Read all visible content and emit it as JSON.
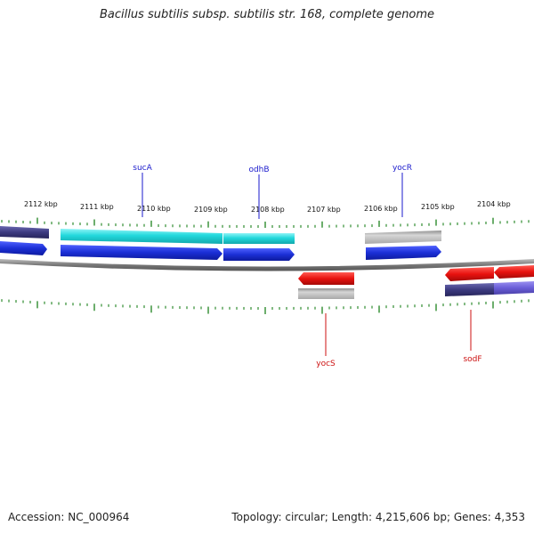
{
  "title": "Bacillus subtilis subsp. subtilis str. 168, complete genome",
  "footer": {
    "accession": "Accession: NC_000964",
    "summary": "Topology: circular; Length: 4,215,606 bp; Genes: 4,353"
  },
  "ruler": {
    "unit": "kbp",
    "labels": [
      "2112 kbp",
      "2111 kbp",
      "2110 kbp",
      "2109 kbp",
      "2108 kbp",
      "2107 kbp",
      "2106 kbp",
      "2105 kbp",
      "2104 kbp"
    ]
  },
  "genes_forward": [
    {
      "name": "sucA",
      "color": "#1b2fd6"
    },
    {
      "name": "odhB",
      "color": "#1b2fd6"
    },
    {
      "name": "yocR",
      "color": "#1b2fd6"
    }
  ],
  "genes_reverse": [
    {
      "name": "yocS",
      "color": "#e8120f"
    },
    {
      "name": "sodF",
      "color": "#e8120f"
    }
  ],
  "colors": {
    "forward_cds": "#1b2fd6",
    "reverse_cds": "#e8120f",
    "cog_cyan": "#22d8dc",
    "cog_gray": "#b4b4b4",
    "cog_navy": "#3c3a80",
    "cog_purple": "#6a5ed8",
    "backbone": "#888888",
    "tick": "#2e8b2e",
    "forward_label": "#1a1acc",
    "reverse_label": "#cc1111"
  }
}
